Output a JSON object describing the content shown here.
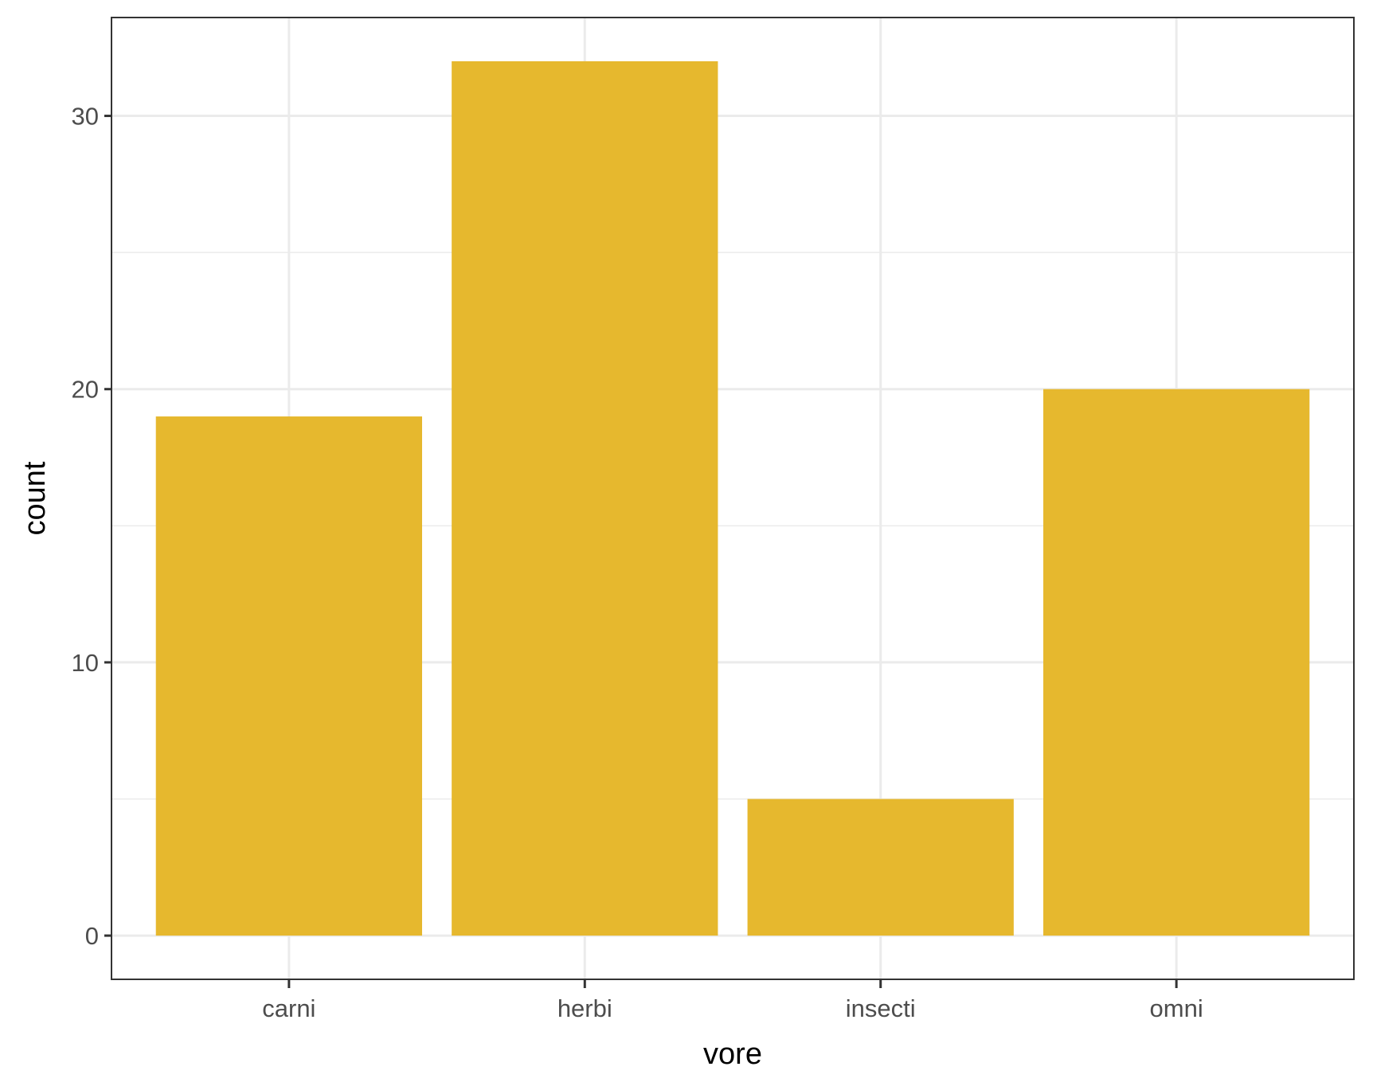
{
  "chart_data": {
    "type": "bar",
    "title": "",
    "xlabel": "vore",
    "ylabel": "count",
    "categories": [
      "carni",
      "herbi",
      "insecti",
      "omni"
    ],
    "values": [
      19,
      32,
      5,
      20
    ],
    "ylim": [
      -1.6,
      33.6
    ],
    "yticks": [
      0,
      10,
      20,
      30
    ],
    "grid": true,
    "bar_color": "#E6B82E",
    "theme": "bw"
  }
}
